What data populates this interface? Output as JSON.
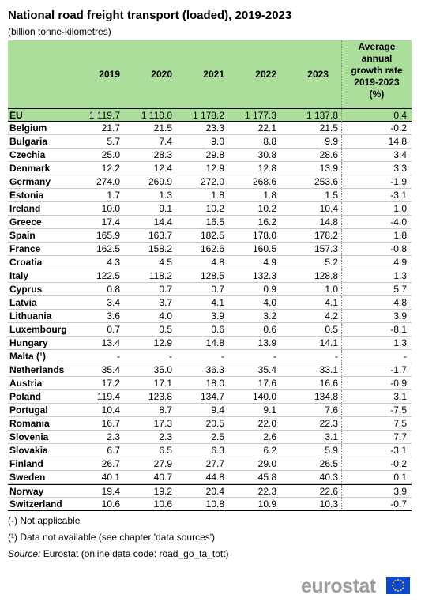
{
  "title": "National road freight transport (loaded), 2019-2023",
  "subtitle": "(billion tonne-kilometres)",
  "chart_data": {
    "type": "table",
    "columns": [
      "2019",
      "2020",
      "2021",
      "2022",
      "2023"
    ],
    "growth_header": [
      "Average",
      "annual",
      "growth rate",
      "2019-2023",
      "(%)"
    ],
    "rows": [
      {
        "name": "EU",
        "values": [
          "1 119.7",
          "1 110.0",
          "1 178.2",
          "1 177.3",
          "1 137.8"
        ],
        "growth": "0.4"
      },
      {
        "name": "Belgium",
        "values": [
          "21.7",
          "21.5",
          "23.3",
          "22.1",
          "21.5"
        ],
        "growth": "-0.2"
      },
      {
        "name": "Bulgaria",
        "values": [
          "5.7",
          "7.4",
          "9.0",
          "8.8",
          "9.9"
        ],
        "growth": "14.8"
      },
      {
        "name": "Czechia",
        "values": [
          "25.0",
          "28.3",
          "29.8",
          "30.8",
          "28.6"
        ],
        "growth": "3.4"
      },
      {
        "name": "Denmark",
        "values": [
          "12.2",
          "12.4",
          "12.9",
          "12.8",
          "13.9"
        ],
        "growth": "3.3"
      },
      {
        "name": "Germany",
        "values": [
          "274.0",
          "269.9",
          "272.0",
          "268.6",
          "253.6"
        ],
        "growth": "-1.9"
      },
      {
        "name": "Estonia",
        "values": [
          "1.7",
          "1.3",
          "1.8",
          "1.8",
          "1.5"
        ],
        "growth": "-3.1"
      },
      {
        "name": "Ireland",
        "values": [
          "10.0",
          "9.1",
          "10.2",
          "10.2",
          "10.4"
        ],
        "growth": "1.0"
      },
      {
        "name": "Greece",
        "values": [
          "17.4",
          "14.4",
          "16.5",
          "16.2",
          "14.8"
        ],
        "growth": "-4.0"
      },
      {
        "name": "Spain",
        "values": [
          "165.9",
          "163.7",
          "182.5",
          "178.0",
          "178.2"
        ],
        "growth": "1.8"
      },
      {
        "name": "France",
        "values": [
          "162.5",
          "158.2",
          "162.6",
          "160.5",
          "157.3"
        ],
        "growth": "-0.8"
      },
      {
        "name": "Croatia",
        "values": [
          "4.3",
          "4.5",
          "4.8",
          "4.9",
          "5.2"
        ],
        "growth": "4.9"
      },
      {
        "name": "Italy",
        "values": [
          "122.5",
          "118.2",
          "128.5",
          "132.3",
          "128.8"
        ],
        "growth": "1.3"
      },
      {
        "name": "Cyprus",
        "values": [
          "0.8",
          "0.7",
          "0.7",
          "0.9",
          "1.0"
        ],
        "growth": "5.7"
      },
      {
        "name": "Latvia",
        "values": [
          "3.4",
          "3.7",
          "4.1",
          "4.0",
          "4.1"
        ],
        "growth": "4.8"
      },
      {
        "name": "Lithuania",
        "values": [
          "3.6",
          "4.0",
          "3.9",
          "3.2",
          "4.2"
        ],
        "growth": "3.9"
      },
      {
        "name": "Luxembourg",
        "values": [
          "0.7",
          "0.5",
          "0.6",
          "0.6",
          "0.5"
        ],
        "growth": "-8.1"
      },
      {
        "name": "Hungary",
        "values": [
          "13.4",
          "12.9",
          "14.8",
          "13.9",
          "14.1"
        ],
        "growth": "1.3"
      },
      {
        "name": "Malta (¹)",
        "values": [
          "-",
          "-",
          "-",
          "-",
          "-"
        ],
        "growth": "-"
      },
      {
        "name": "Netherlands",
        "values": [
          "35.4",
          "35.0",
          "36.3",
          "35.4",
          "33.1"
        ],
        "growth": "-1.7"
      },
      {
        "name": "Austria",
        "values": [
          "17.2",
          "17.1",
          "18.0",
          "17.6",
          "16.6"
        ],
        "growth": "-0.9"
      },
      {
        "name": "Poland",
        "values": [
          "119.4",
          "123.8",
          "134.7",
          "140.0",
          "134.8"
        ],
        "growth": "3.1"
      },
      {
        "name": "Portugal",
        "values": [
          "10.4",
          "8.7",
          "9.4",
          "9.1",
          "7.6"
        ],
        "growth": "-7.5"
      },
      {
        "name": "Romania",
        "values": [
          "16.7",
          "17.3",
          "20.5",
          "22.0",
          "22.3"
        ],
        "growth": "7.5"
      },
      {
        "name": "Slovenia",
        "values": [
          "2.3",
          "2.3",
          "2.5",
          "2.6",
          "3.1"
        ],
        "growth": "7.7"
      },
      {
        "name": "Slovakia",
        "values": [
          "6.7",
          "6.5",
          "6.3",
          "6.2",
          "5.9"
        ],
        "growth": "-3.1"
      },
      {
        "name": "Finland",
        "values": [
          "26.7",
          "27.9",
          "27.7",
          "29.0",
          "26.5"
        ],
        "growth": "-0.2"
      },
      {
        "name": "Sweden",
        "values": [
          "40.1",
          "40.7",
          "44.8",
          "45.8",
          "40.3"
        ],
        "growth": "0.1"
      },
      {
        "name": "Norway",
        "values": [
          "19.4",
          "19.2",
          "20.4",
          "22.3",
          "22.6"
        ],
        "growth": "3.9"
      },
      {
        "name": "Switzerland",
        "values": [
          "10.6",
          "10.6",
          "10.8",
          "10.9",
          "10.3"
        ],
        "growth": "-0.7"
      }
    ]
  },
  "notes": {
    "not_applicable": "(-) Not applicable",
    "not_available": "(¹) Data not available (see chapter 'data sources')",
    "source_label": "Source:",
    "source_text": "Eurostat (online data code: road_go_ta_tott)"
  },
  "logo": {
    "text": "eurostat",
    "text_color": "#9d9d9d",
    "flag_color": "#0e47cb",
    "star_color": "#ffdd00"
  },
  "colors": {
    "header_bg": "#acde9b",
    "eu_row_bg": "#acde9b"
  }
}
